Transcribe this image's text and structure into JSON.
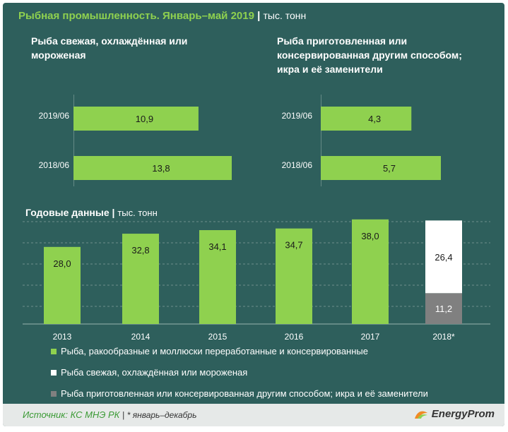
{
  "header": {
    "title": "Рыбная промышленность. Январь–май 2019",
    "separator": "|",
    "unit": "тыс. тонн"
  },
  "panels": [
    {
      "subtitle_lines": [
        "Рыба свежая,  охлаждённая  или",
        "мороженая"
      ],
      "rows": [
        "2019/06",
        "2018/06"
      ],
      "values": [
        10.9,
        13.8
      ],
      "labels": [
        "10,9",
        "13,8"
      ],
      "max": 13.8
    },
    {
      "subtitle_lines": [
        "Рыба приготовленная  или",
        "консервированная  другим способом;",
        "икра  и её заменители"
      ],
      "rows": [
        "2019/06",
        "2018/06"
      ],
      "values": [
        4.3,
        5.7
      ],
      "labels": [
        "4,3",
        "5,7"
      ],
      "max": 5.7
    }
  ],
  "annual": {
    "title": "Годовые данные",
    "separator": "|",
    "unit": "тыс. тонн"
  },
  "chart_data": [
    {
      "type": "bar",
      "orientation": "horizontal",
      "title": "Рыба свежая,  охлаждённая  или мороженая",
      "categories": [
        "2019/06",
        "2018/06"
      ],
      "values": [
        10.9,
        13.8
      ]
    },
    {
      "type": "bar",
      "orientation": "horizontal",
      "title": "Рыба приготовленная  или консервированная  другим способом; икра  и её заменители",
      "categories": [
        "2019/06",
        "2018/06"
      ],
      "values": [
        4.3,
        5.7
      ]
    },
    {
      "type": "bar",
      "title": "Годовые данные",
      "ylabel": "тыс. тонн",
      "categories": [
        "2013",
        "2014",
        "2015",
        "2016",
        "2017",
        "2018*"
      ],
      "series": [
        {
          "name": "Рыба, ракообразные и моллюски переработанные и консервированные",
          "values": [
            28.0,
            32.8,
            34.1,
            34.7,
            38.0,
            null
          ],
          "labels": [
            "28,0",
            "32,8",
            "34,1",
            "34,7",
            "38,0",
            ""
          ]
        },
        {
          "name": "Рыба свежая, охлаждённая или мороженая",
          "values": [
            null,
            null,
            null,
            null,
            null,
            26.4
          ],
          "labels": [
            "",
            "",
            "",
            "",
            "",
            "26,4"
          ]
        },
        {
          "name": "Рыба приготовленная или консервированная другим способом; икра и её заменители",
          "values": [
            null,
            null,
            null,
            null,
            null,
            11.2
          ],
          "labels": [
            "",
            "",
            "",
            "",
            "",
            "11,2"
          ]
        }
      ],
      "stacked_for_2018": true,
      "ylim": [
        0,
        40
      ],
      "grid": true
    }
  ],
  "legend": [
    {
      "label": "Рыба, ракообразные и моллюски переработанные и консервированные",
      "color": "#8fd14f"
    },
    {
      "label": "Рыба свежая, охлаждённая или мороженая",
      "color": "#ffffff"
    },
    {
      "label": "Рыба приготовленная или консервированная другим способом; икра и её заменители",
      "color": "#808080"
    }
  ],
  "colors": {
    "background": "#2e5f5c",
    "accent_green": "#8fd14f",
    "white_series": "#ffffff",
    "grey_series": "#808080",
    "footer_bg": "#e6e9e8",
    "source_green": "#3a9a34"
  },
  "footer": {
    "source": "Источник: КС МНЭ РК",
    "separator": "|",
    "note": "* январь–декабрь",
    "logo": "EnergyProm"
  }
}
